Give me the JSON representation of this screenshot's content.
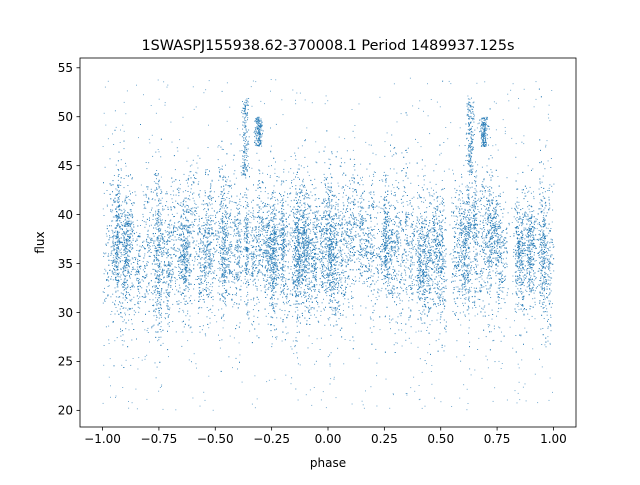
{
  "chart_data": {
    "type": "scatter",
    "title": "1SWASPJ155938.62-370008.1 Period 1489937.125s",
    "xlabel": "phase",
    "ylabel": "flux",
    "xlim": [
      -1.1,
      1.1
    ],
    "ylim": [
      18.3,
      56.0
    ],
    "xticks": [
      -1.0,
      -0.75,
      -0.5,
      -0.25,
      0.0,
      0.25,
      0.5,
      0.75,
      1.0
    ],
    "xtick_labels": [
      "−1.00",
      "−0.75",
      "−0.50",
      "−0.25",
      "0.00",
      "0.25",
      "0.50",
      "0.75",
      "1.00"
    ],
    "yticks": [
      20,
      25,
      30,
      35,
      40,
      45,
      50,
      55
    ],
    "ytick_labels": [
      "20",
      "25",
      "30",
      "35",
      "40",
      "45",
      "50",
      "55"
    ],
    "grid": false,
    "legend": "none",
    "marker_color": "#1f77b4",
    "series": [
      {
        "x_range": [
          -1.0,
          1.0
        ],
        "flux_center": 36.5,
        "flux_core_spread": [
          31,
          43
        ],
        "flux_outlier_range": [
          20,
          54
        ],
        "features": [
          {
            "x": -0.37,
            "flux_range": [
              44,
              52
            ]
          },
          {
            "x": -0.31,
            "flux_range": [
              47,
              50
            ]
          },
          {
            "x": 0.63,
            "flux_range": [
              44,
              52
            ]
          },
          {
            "x": 0.69,
            "flux_range": [
              47,
              50
            ]
          }
        ]
      }
    ]
  }
}
